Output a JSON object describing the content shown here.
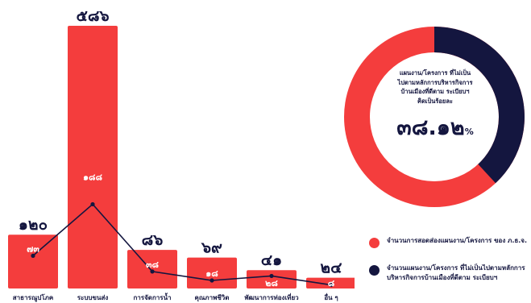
{
  "colors": {
    "primary": "#f43d3d",
    "secondary": "#14163f",
    "text": "#14163f"
  },
  "chart_data": [
    {
      "type": "bar",
      "categories": [
        "สาธารณูปโภค",
        "ระบบขนส่ง",
        "การจัดการน้ำ",
        "คุณภาพชีวิต",
        "พัฒนาการท่องเที่ยว",
        "อื่น ๆ"
      ],
      "categories_display": [
        "สาธารณูปโภค",
        "ระบบขนส่ง",
        "การจัดการน้ำ",
        "คุณภาพชีวิต",
        "พัฒนาการท่องเที่ยว",
        "อื่น ๆ"
      ],
      "series": [
        {
          "name": "จำนวนการสอดส่องแผนงาน/โครงการ ของ ภ.ธ.จ.",
          "values": [
            120,
            586,
            86,
            69,
            41,
            24
          ],
          "labels": [
            "๑๒๐",
            "๕๘๖",
            "๘๖",
            "๖๙",
            "๔๑",
            "๒๔"
          ]
        },
        {
          "name": "จำนวนแผนงาน/โครงการ ที่ไม่เป็นไปตามหลักการบริหารกิจการบ้านเมืองที่ดีตาม ระเบียบฯ",
          "values": [
            73,
            188,
            38,
            18,
            28,
            8
          ],
          "labels": [
            "๗๓",
            "๑๘๘",
            "๓๘",
            "๑๘",
            "๒๘",
            "๘"
          ]
        }
      ],
      "ylim": [
        0,
        600
      ]
    },
    {
      "type": "pie",
      "labels": [
        "แผนงาน/โครงการ ที่ไม่เป็นไปตามหลักการบริหารกิจการบ้านเมืองที่ดีตาม ระเบียบฯ"
      ],
      "values": [
        38.12
      ],
      "caption_lines": [
        "แผนงาน/โครงการ ที่ไม่เป็น",
        "ไปตามหลักการบริหารกิจการ",
        "บ้านเมืองที่ดีตาม ระเบียบฯ",
        "คิดเป็นร้อยละ"
      ],
      "value_label": "๓๘.๑๒",
      "unit": "%"
    }
  ]
}
